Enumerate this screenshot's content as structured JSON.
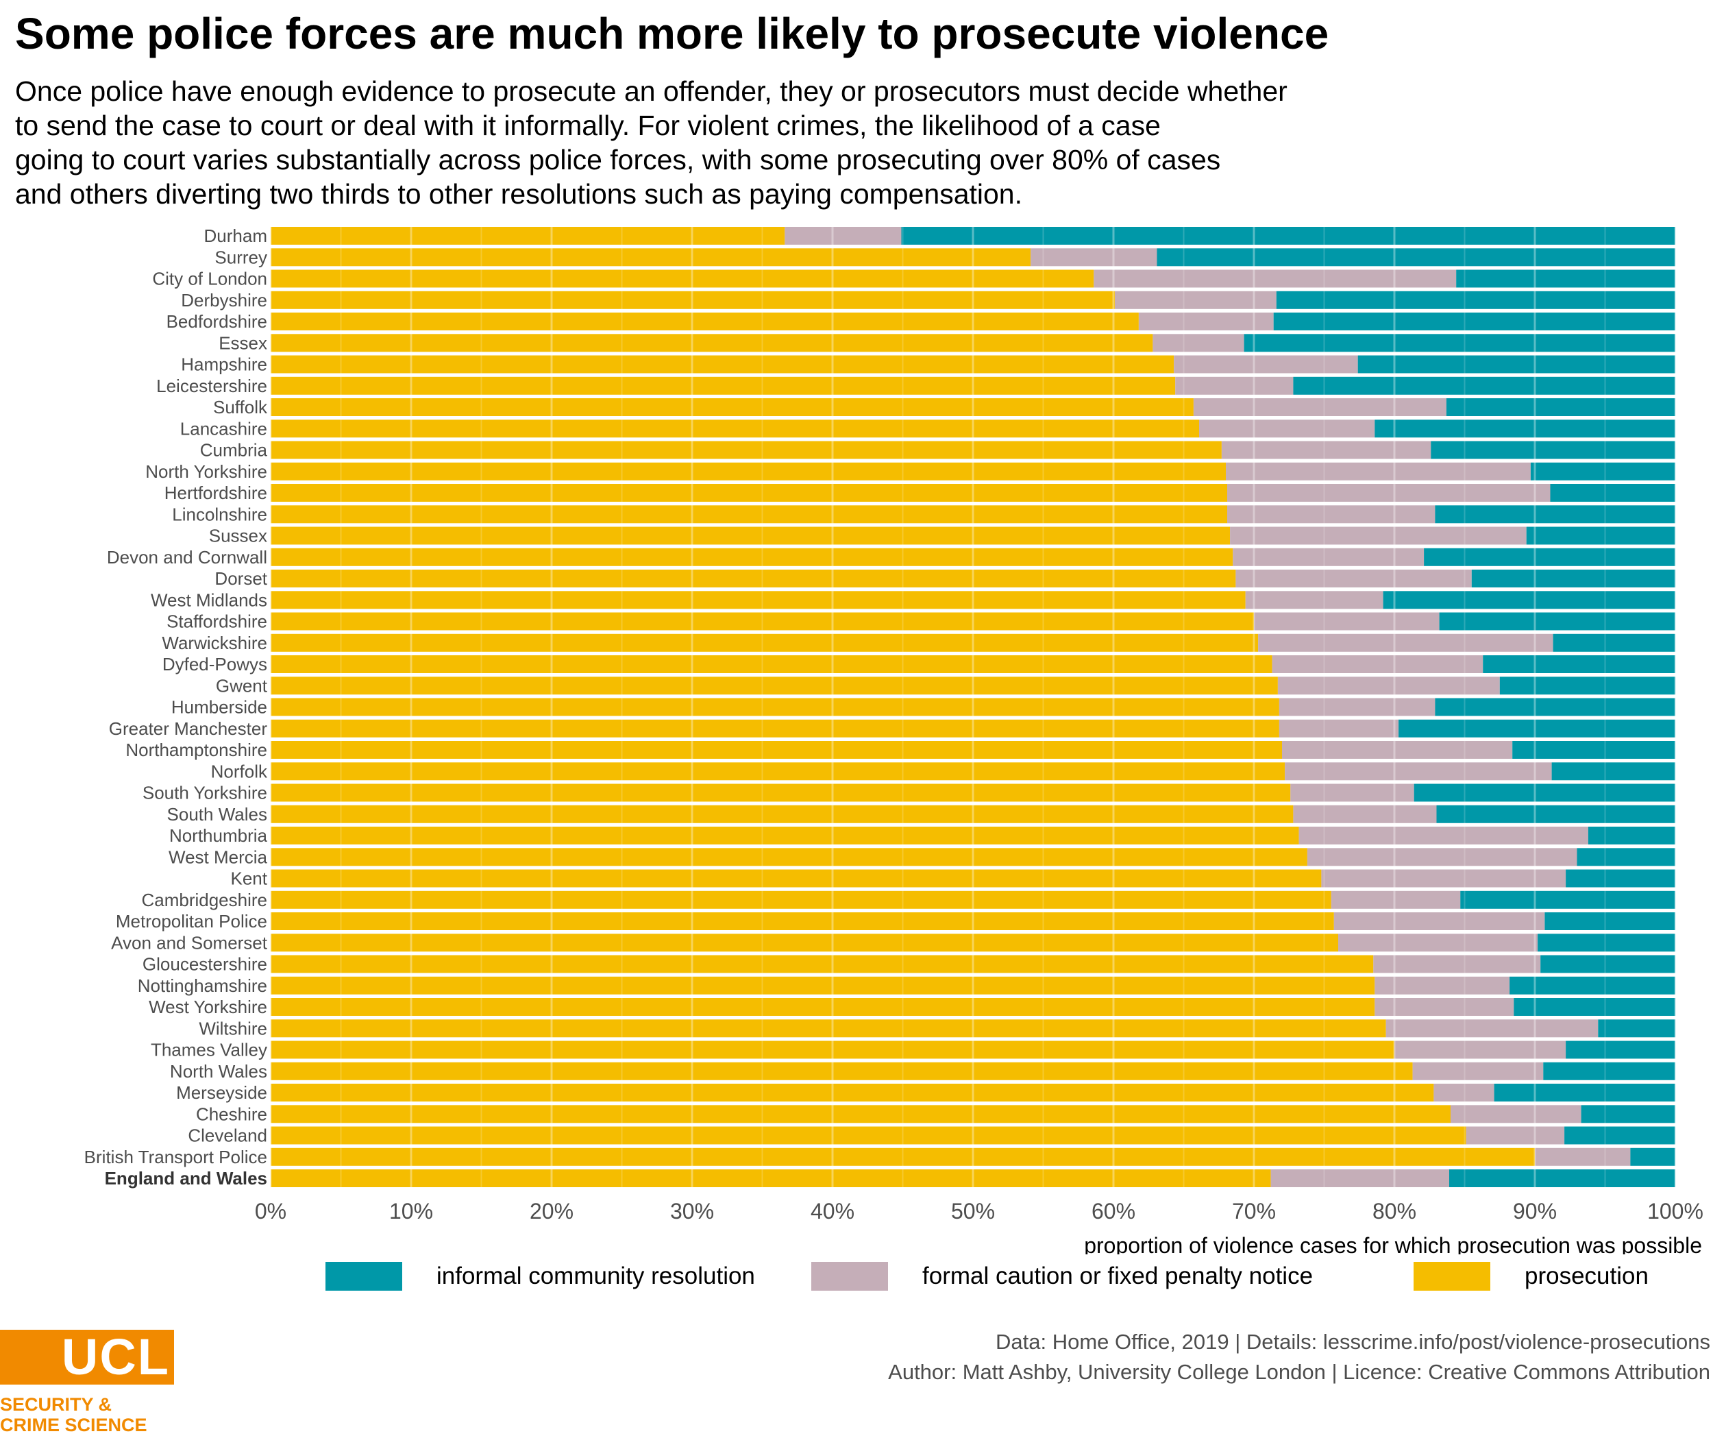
{
  "title": "Some police forces are much more likely to prosecute violence",
  "subtitle_lines": [
    "Once police have enough evidence to prosecute an offender, they or prosecutors must decide whether",
    "to send the case to court or deal with it informally. For violent crimes, the likelihood of a case",
    "going to court varies substantially across police forces, with some prosecuting over 80% of cases",
    "and others diverting two thirds to other resolutions such as paying compensation."
  ],
  "colors": {
    "prosecution": "#F5BD00",
    "formal": "#C5AEB8",
    "informal": "#0098A8",
    "grid": "#FFFFFF",
    "ucl_orange": "#F18A00"
  },
  "legend": [
    {
      "key": "informal",
      "label": "informal community resolution"
    },
    {
      "key": "formal",
      "label": "formal caution or fixed penalty notice"
    },
    {
      "key": "prosecution",
      "label": "prosecution"
    }
  ],
  "chart_data": {
    "type": "bar",
    "orientation": "horizontal",
    "stacked": true,
    "xlabel": "proportion of violence cases for which prosecution was possible",
    "ylabel": "",
    "xlim": [
      0,
      100
    ],
    "x_ticks": [
      "0%",
      "10%",
      "20%",
      "30%",
      "40%",
      "50%",
      "60%",
      "70%",
      "80%",
      "90%",
      "100%"
    ],
    "grid": true,
    "legend_position": "bottom",
    "categories": [
      "Durham",
      "Surrey",
      "City   of   London",
      "Derbyshire",
      "Bedfordshire",
      "Essex",
      "Hampshire",
      "Leicestershire",
      "Suffolk",
      "Lancashire",
      "Cumbria",
      "North  Yorkshire",
      "Hertfordshire",
      "Lincolnshire",
      "Sussex",
      "Devon and  Cornwall",
      "Dorset",
      "West Midlands",
      "Staffordshire",
      "Warwickshire",
      "Dyfed-Powys",
      "Gwent",
      "Humberside",
      "Greater  Manchester",
      "Northamptonshire",
      "Norfolk",
      "South  Yorkshire",
      "South  Wales",
      "Northumbria",
      "West Mercia",
      "Kent",
      "Cambridgeshire",
      "Metropolitan    Police",
      "Avon and Somerset",
      "Gloucestershire",
      "Nottinghamshire",
      "West Yorkshire",
      "Wiltshire",
      "Thames Valley",
      "North  Wales",
      "Merseyside",
      "Cheshire",
      "Cleveland",
      "British     Transport   Police",
      "England and Wales"
    ],
    "bold_categories": [
      "England and Wales"
    ],
    "series": [
      {
        "key": "prosecution",
        "values": [
          36.6,
          54.1,
          58.6,
          60.1,
          61.8,
          62.8,
          64.3,
          64.4,
          65.7,
          66.1,
          67.7,
          68.0,
          68.1,
          68.1,
          68.3,
          68.5,
          68.7,
          69.4,
          70.0,
          70.3,
          71.3,
          71.7,
          71.8,
          71.8,
          72.0,
          72.2,
          72.6,
          72.8,
          73.2,
          73.8,
          74.8,
          75.5,
          75.7,
          76.0,
          78.5,
          78.6,
          78.6,
          79.4,
          80.0,
          81.3,
          82.8,
          84.0,
          85.1,
          90.0,
          71.2
        ]
      },
      {
        "key": "formal",
        "values": [
          8.3,
          9.0,
          25.8,
          11.5,
          9.6,
          6.5,
          13.1,
          8.4,
          18.0,
          12.5,
          14.9,
          21.7,
          23.0,
          14.8,
          21.1,
          13.6,
          16.8,
          9.8,
          13.2,
          21.0,
          15.0,
          15.8,
          11.1,
          8.5,
          16.4,
          19.0,
          8.8,
          10.2,
          20.6,
          19.2,
          17.4,
          9.2,
          15.0,
          14.2,
          11.9,
          9.6,
          9.9,
          15.1,
          12.2,
          9.3,
          4.3,
          9.3,
          7.0,
          6.8,
          12.7
        ]
      },
      {
        "key": "informal",
        "values": [
          55.1,
          36.9,
          15.6,
          28.4,
          28.6,
          30.7,
          22.6,
          27.2,
          16.3,
          21.4,
          17.4,
          10.3,
          8.9,
          17.1,
          10.6,
          17.9,
          14.5,
          20.8,
          16.8,
          8.7,
          13.7,
          12.5,
          17.1,
          19.7,
          11.6,
          8.8,
          18.6,
          17.0,
          6.2,
          7.0,
          7.8,
          15.3,
          9.3,
          9.8,
          9.6,
          11.8,
          11.5,
          5.5,
          7.8,
          9.4,
          12.9,
          6.7,
          7.9,
          3.2,
          16.1
        ]
      }
    ]
  },
  "logo": {
    "name": "UCL",
    "dept_line1": "SECURITY &",
    "dept_line2": "CRIME SCIENCE"
  },
  "footer": {
    "line1": "Data: Home Office, 2019 |  Details: lesscrime.info/post/violence-prosecutions",
    "line2": "Author: Matt Ashby, University College London |  Licence: Creative Commons Attribution"
  }
}
